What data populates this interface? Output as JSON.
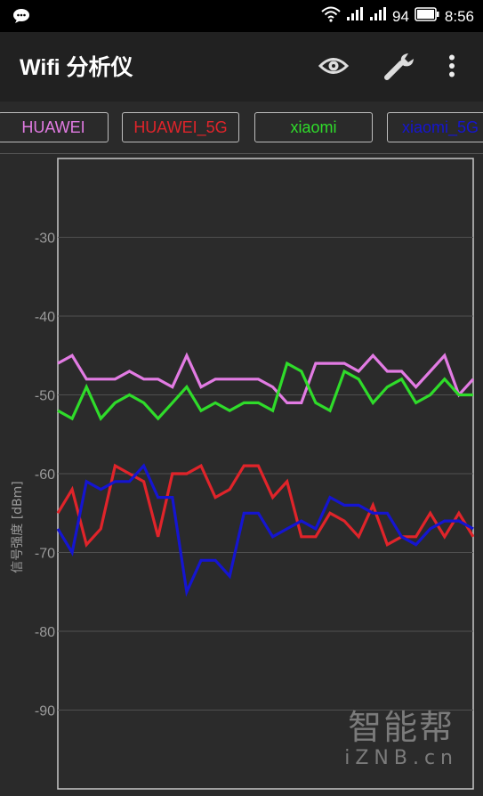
{
  "status_bar": {
    "left_icon": "chat-bubble-icon",
    "battery_percent": "94",
    "time": "8:56"
  },
  "app_bar": {
    "title": "Wifi 分析仪",
    "actions": [
      "eye-icon",
      "wrench-icon",
      "overflow-menu-icon"
    ]
  },
  "ssid_tabs": [
    {
      "label": "HUAWEI",
      "color": "#e27be3"
    },
    {
      "label": "HUAWEI_5G",
      "color": "#e0242a"
    },
    {
      "label": "xiaomi",
      "color": "#2fdc2a"
    },
    {
      "label": "xiaomi_5G",
      "color": "#1515d0"
    }
  ],
  "watermark": {
    "line1": "智能帮",
    "line2": "iZNB.cn"
  },
  "chart_data": {
    "type": "line",
    "ylabel": "信号强度 [dBm]",
    "ylim": [
      -100,
      -20
    ],
    "yticks": [
      -30,
      -40,
      -50,
      -60,
      -70,
      -80,
      -90
    ],
    "grid": true,
    "series": [
      {
        "name": "HUAWEI",
        "color": "#e27be3",
        "values": [
          -46,
          -45,
          -48,
          -48,
          -48,
          -47,
          -48,
          -48,
          -49,
          -45,
          -49,
          -48,
          -48,
          -48,
          -48,
          -49,
          -51,
          -51,
          -46,
          -46,
          -46,
          -47,
          -45,
          -47,
          -47,
          -49,
          -47,
          -45,
          -50,
          -48
        ]
      },
      {
        "name": "HUAWEI_5G",
        "color": "#e0242a",
        "values": [
          -65,
          -62,
          -69,
          -67,
          -59,
          -60,
          -61,
          -68,
          -60,
          -60,
          -59,
          -63,
          -62,
          -59,
          -59,
          -63,
          -61,
          -68,
          -68,
          -65,
          -66,
          -68,
          -64,
          -69,
          -68,
          -68,
          -65,
          -68,
          -65,
          -68
        ]
      },
      {
        "name": "xiaomi",
        "color": "#2fdc2a",
        "values": [
          -52,
          -53,
          -49,
          -53,
          -51,
          -50,
          -51,
          -53,
          -51,
          -49,
          -52,
          -51,
          -52,
          -51,
          -51,
          -52,
          -46,
          -47,
          -51,
          -52,
          -47,
          -48,
          -51,
          -49,
          -48,
          -51,
          -50,
          -48,
          -50,
          -50
        ]
      },
      {
        "name": "xiaomi_5G",
        "color": "#1515d0",
        "values": [
          -67,
          -70,
          -61,
          -62,
          -61,
          -61,
          -59,
          -63,
          -63,
          -75,
          -71,
          -71,
          -73,
          -65,
          -65,
          -68,
          -67,
          -66,
          -67,
          -63,
          -64,
          -64,
          -65,
          -65,
          -68,
          -69,
          -67,
          -66,
          -66,
          -67
        ]
      }
    ]
  }
}
